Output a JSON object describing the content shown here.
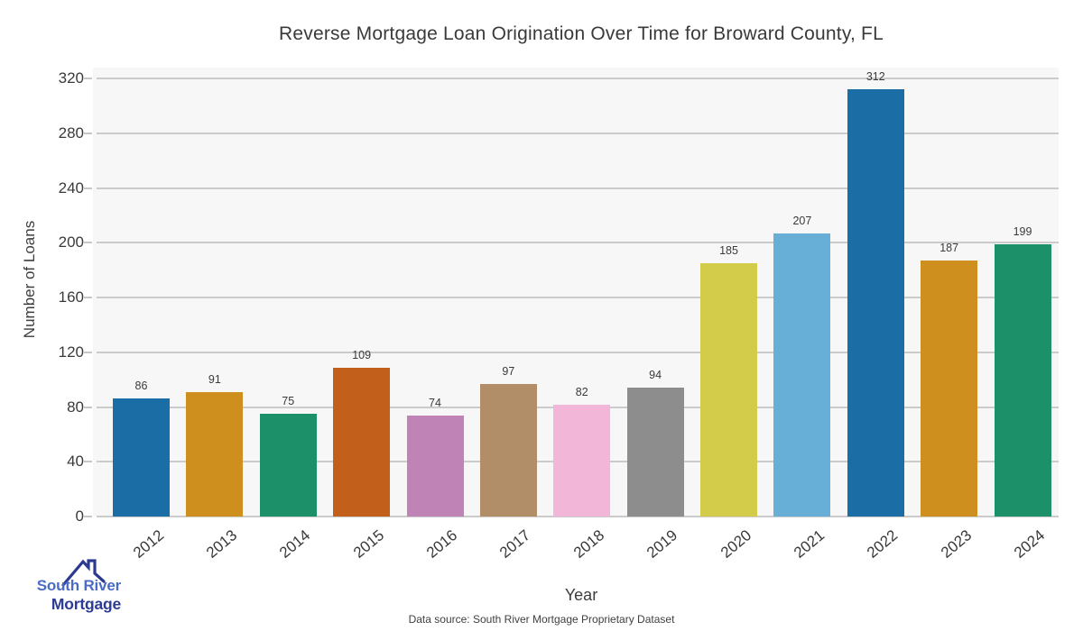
{
  "chart_data": {
    "type": "bar",
    "title": "Reverse Mortgage Loan Origination Over Time for Broward County, FL",
    "xlabel": "Year",
    "ylabel": "Number of Loans",
    "categories": [
      "2012",
      "2013",
      "2014",
      "2015",
      "2016",
      "2017",
      "2018",
      "2019",
      "2020",
      "2021",
      "2022",
      "2023",
      "2024"
    ],
    "values": [
      86,
      91,
      75,
      109,
      74,
      97,
      82,
      94,
      185,
      207,
      312,
      187,
      199
    ],
    "bar_colors": [
      "#1b6ea5",
      "#ce8f1f",
      "#1b9069",
      "#c2601b",
      "#c083b6",
      "#b18e68",
      "#f2b6d8",
      "#8d8d8d",
      "#d3cb4a",
      "#67afd7",
      "#1b6ea5",
      "#ce8f1f",
      "#1b9069"
    ],
    "value_labels": [
      86,
      91,
      75,
      109,
      74,
      97,
      82,
      94,
      185,
      207,
      312,
      187,
      199
    ],
    "yticks": [
      0,
      40,
      80,
      120,
      160,
      200,
      240,
      280,
      320
    ],
    "ylim": [
      0,
      328
    ],
    "grid": true,
    "legend": false,
    "plot_background": "#f7f7f7",
    "gridline_color": "#cbcbcb",
    "tick_mark_color": "#c6c6c6",
    "text_color": "#3a3a3a"
  },
  "footer": {
    "caption": "Data source: South River Mortgage Proprietary Dataset"
  },
  "logo": {
    "line1": "South River",
    "line2": "Mortgage",
    "line1_color": "#4a6cc4",
    "line2_color": "#2c3b94",
    "roof_color": "#2b3990",
    "icon": "house-roof-icon"
  }
}
